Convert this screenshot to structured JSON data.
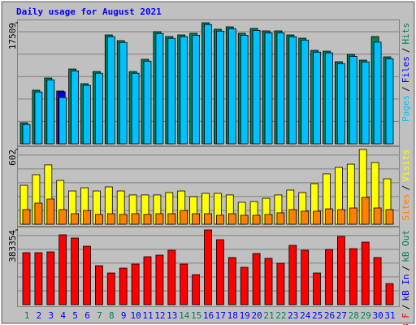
{
  "title": "Daily usage for August 2021",
  "legend_separator": "/",
  "chart_data": [
    {
      "type": "bar",
      "ylim": [
        0,
        17509
      ],
      "yticks": [
        17509
      ],
      "series": [
        {
          "name": "Hits",
          "color": "#00805c",
          "values": [
            3055,
            7756,
            9518,
            7638,
            10811,
            8696,
            10458,
            15746,
            14924,
            10458,
            12221,
            16216,
            15511,
            15746,
            15981,
            17509,
            16569,
            16921,
            15981,
            16686,
            16334,
            16334,
            15746,
            15276,
            13514,
            13396,
            11868,
            12926,
            12103,
            15511,
            12574
          ]
        },
        {
          "name": "Files",
          "color": "#0000ff",
          "values": [
            null,
            null,
            null,
            7520,
            null,
            null,
            null,
            null,
            null,
            null,
            null,
            null,
            null,
            null,
            null,
            null,
            null,
            null,
            null,
            null,
            null,
            null,
            null,
            null,
            null,
            null,
            null,
            null,
            null,
            null,
            null
          ]
        },
        {
          "name": "Pages",
          "color": "#00c0ff",
          "values": [
            2800,
            7500,
            9250,
            6698,
            10550,
            8450,
            10200,
            15500,
            14650,
            10200,
            11950,
            15950,
            15250,
            15500,
            15700,
            17250,
            16300,
            16650,
            15700,
            16400,
            16050,
            16050,
            15500,
            15000,
            13250,
            13150,
            11600,
            12650,
            11850,
            14700,
            12300
          ]
        }
      ]
    },
    {
      "type": "bar",
      "ylim": [
        0,
        602
      ],
      "yticks": [
        602
      ],
      "series": [
        {
          "name": "Visits",
          "color": "#ffff00",
          "values": [
            314,
            399,
            478,
            353,
            268,
            294,
            268,
            301,
            268,
            236,
            236,
            236,
            255,
            268,
            222,
            249,
            249,
            236,
            177,
            183,
            209,
            236,
            275,
            255,
            327,
            406,
            458,
            484,
            602,
            497,
            366
          ]
        },
        {
          "name": "Sites",
          "color": "#ff8000",
          "values": [
            118,
            170,
            203,
            118,
            85,
            111,
            79,
            85,
            79,
            85,
            79,
            85,
            85,
            111,
            85,
            85,
            72,
            85,
            72,
            72,
            79,
            92,
            118,
            105,
            105,
            124,
            118,
            131,
            216,
            131,
            118
          ]
        }
      ]
    },
    {
      "type": "bar",
      "ylim": [
        0,
        383354
      ],
      "yticks": [
        383354
      ],
      "categories": [
        "1",
        "2",
        "3",
        "4",
        "5",
        "6",
        "7",
        "8",
        "9",
        "10",
        "11",
        "12",
        "13",
        "14",
        "15",
        "16",
        "17",
        "18",
        "19",
        "20",
        "21",
        "22",
        "23",
        "24",
        "25",
        "26",
        "27",
        "28",
        "29",
        "30",
        "31"
      ],
      "category_colors": [
        "#00805c",
        "#0000ff",
        "#0000ff",
        "#0000ff",
        "#0000ff",
        "#0000ff",
        "#00805c",
        "#00805c",
        "#0000ff",
        "#0000ff",
        "#0000ff",
        "#0000ff",
        "#0000ff",
        "#00805c",
        "#00805c",
        "#0000ff",
        "#0000ff",
        "#0000ff",
        "#0000ff",
        "#0000ff",
        "#00805c",
        "#00805c",
        "#0000ff",
        "#0000ff",
        "#0000ff",
        "#0000ff",
        "#0000ff",
        "#00805c",
        "#00805c",
        "#0000ff",
        "#0000ff"
      ],
      "series": [
        {
          "name": "kB Out",
          "color": "#00805c",
          "values": [
            null,
            null,
            null,
            null,
            null,
            null,
            null,
            null,
            null,
            null,
            null,
            null,
            null,
            null,
            null,
            null,
            null,
            null,
            null,
            null,
            null,
            null,
            null,
            null,
            null,
            null,
            null,
            null,
            null,
            null,
            null
          ]
        },
        {
          "name": "kB In",
          "color": "#0000ff",
          "values": [
            null,
            null,
            null,
            null,
            null,
            null,
            null,
            null,
            null,
            null,
            null,
            null,
            null,
            null,
            null,
            null,
            null,
            null,
            null,
            null,
            null,
            null,
            null,
            null,
            null,
            null,
            null,
            null,
            null,
            null,
            null
          ]
        },
        {
          "name": "kB F",
          "color": "#ff0000",
          "values": [
            266681,
            266681,
            270848,
            358353,
            341685,
            300016,
            200011,
            162509,
            187510,
            208345,
            245847,
            254181,
            279183,
            208345,
            154176,
            383354,
            333351,
            241680,
            191677,
            262514,
            237513,
            212512,
            304183,
            279183,
            162509,
            283349,
            350019,
            287516,
            320851,
            241680,
            108340
          ]
        }
      ]
    }
  ]
}
